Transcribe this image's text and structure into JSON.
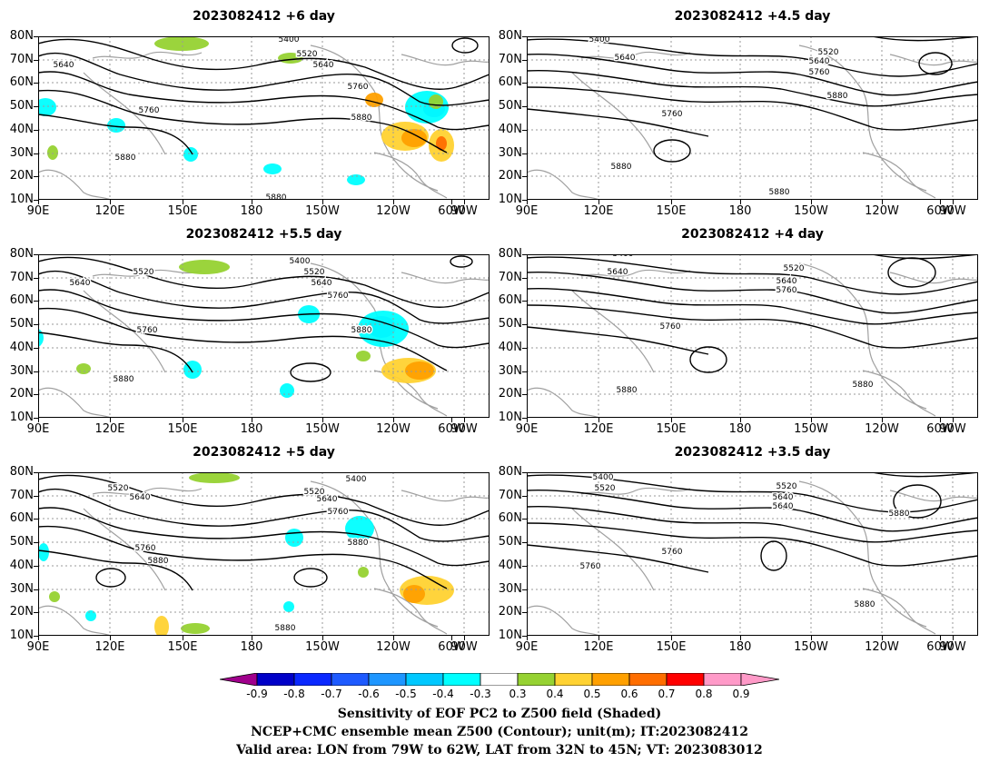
{
  "panels": [
    {
      "title": "2023082412 +6 day"
    },
    {
      "title": "2023082412 +4.5 day"
    },
    {
      "title": "2023082412 +5.5 day"
    },
    {
      "title": "2023082412 +4 day"
    },
    {
      "title": "2023082412 +5 day"
    },
    {
      "title": "2023082412 +3.5 day"
    }
  ],
  "axes": {
    "lat_labels": [
      "80N",
      "70N",
      "60N",
      "50N",
      "40N",
      "30N",
      "20N",
      "10N"
    ],
    "lon_labels": [
      "90E",
      "120E",
      "150E",
      "180",
      "150W",
      "120W",
      "90W",
      "60W"
    ]
  },
  "contour_labels": {
    "p0": [
      "5400",
      "5520",
      "5640",
      "5640",
      "5760",
      "5760",
      "5880",
      "5880",
      "5880"
    ],
    "p1": [
      "5400",
      "5400",
      "5520",
      "5640",
      "5640",
      "5760",
      "5760",
      "5880",
      "5880",
      "5880"
    ],
    "p2": [
      "5400",
      "5520",
      "5520",
      "5640",
      "5640",
      "5760",
      "5760",
      "5880",
      "5880"
    ],
    "p3": [
      "5400",
      "5520",
      "5640",
      "5640",
      "5760",
      "5760",
      "5880",
      "5880"
    ],
    "p4": [
      "5400",
      "5520",
      "5520",
      "5640",
      "5640",
      "5760",
      "5760",
      "5880",
      "5880",
      "5880"
    ],
    "p5": [
      "5400",
      "5520",
      "5520",
      "5640",
      "5640",
      "5760",
      "5760",
      "5880",
      "5880"
    ]
  },
  "colorbar": {
    "labels": [
      "-0.9",
      "-0.8",
      "-0.7",
      "-0.6",
      "-0.5",
      "-0.4",
      "-0.3",
      "0.3",
      "0.4",
      "0.5",
      "0.6",
      "0.7",
      "0.8",
      "0.9"
    ],
    "colors": [
      "#a0008c",
      "#0000c8",
      "#0a28ff",
      "#1e5aff",
      "#1e96ff",
      "#00c8ff",
      "#00ffff",
      "#ffffff",
      "#96d232",
      "#ffd232",
      "#ffa000",
      "#ff6e00",
      "#ff0000",
      "#ff9ac8",
      "#ff9ac8"
    ]
  },
  "captions": {
    "line1": "Sensitivity of EOF PC2 to Z500 field (Shaded)",
    "line2": "NCEP+CMC ensemble mean Z500 (Contour); unit(m); IT:2023082412",
    "line3": "Valid area: LON from 79W to 62W, LAT from 32N to 45N; VT: 2023083012"
  }
}
